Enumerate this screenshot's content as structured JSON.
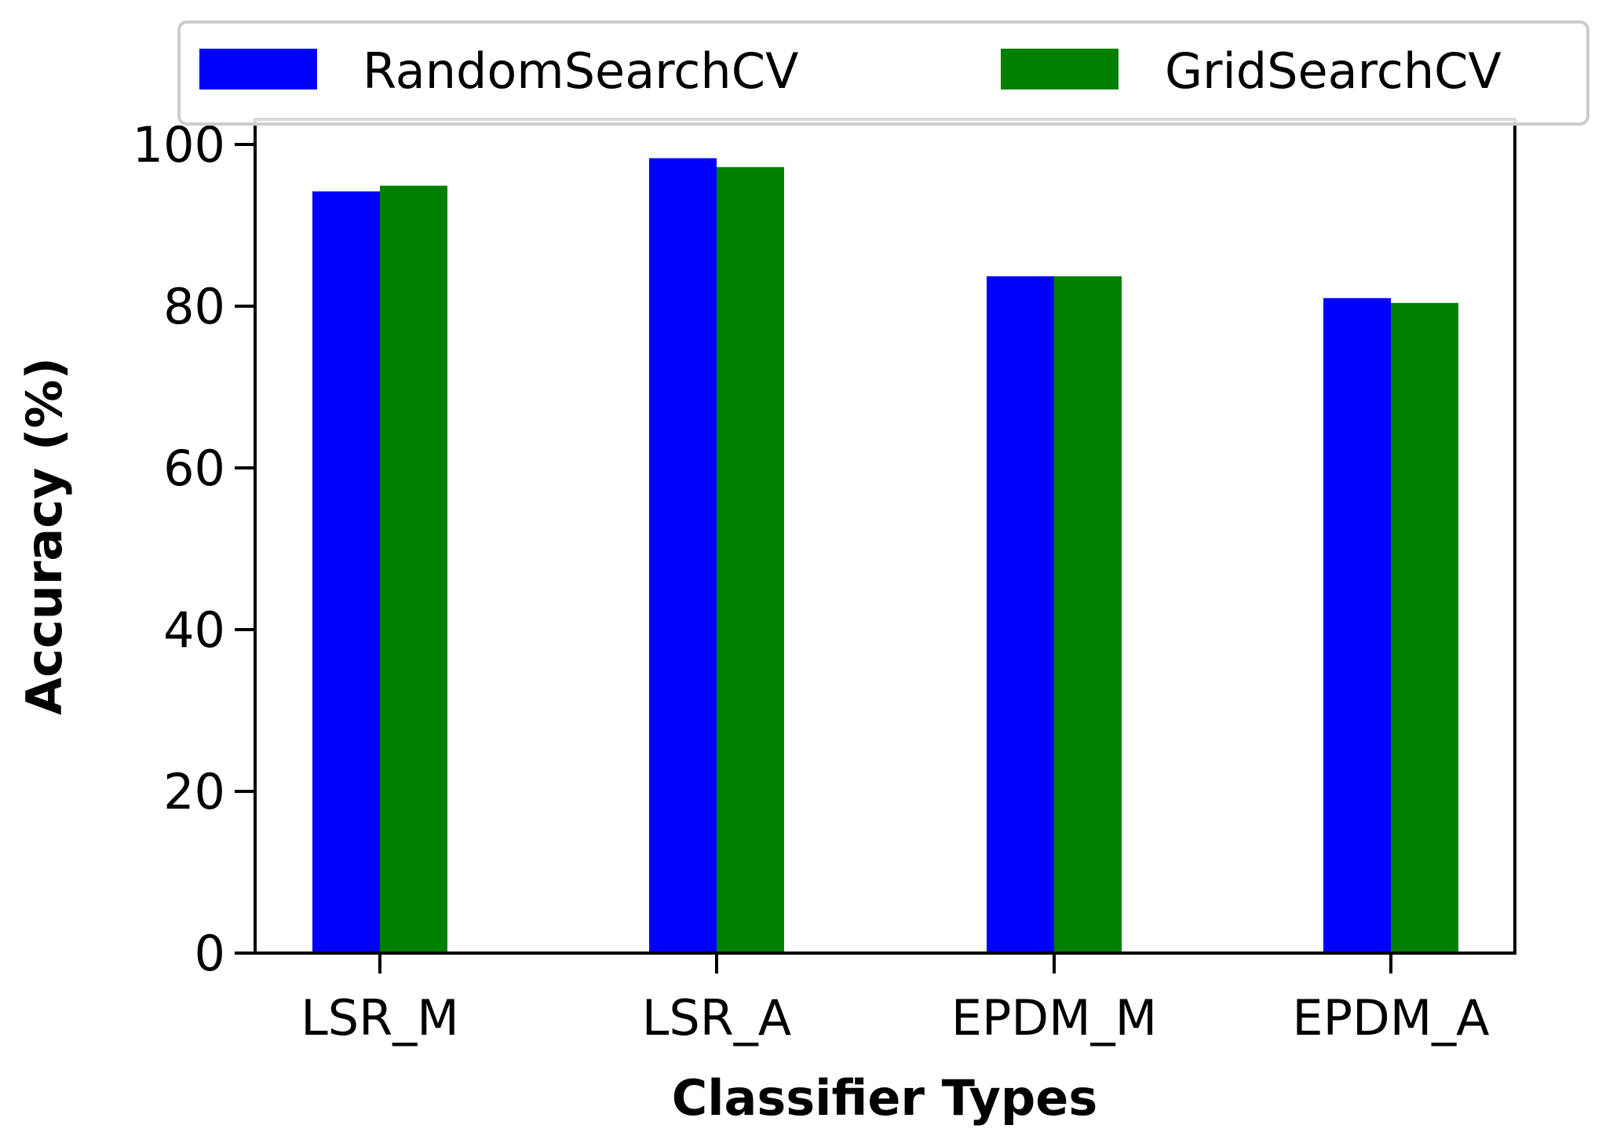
{
  "chart_data": {
    "type": "bar",
    "title": "",
    "xlabel": "Classifier Types",
    "ylabel": "Accuracy (%)",
    "categories": [
      "LSR_M",
      "LSR_A",
      "EPDM_M",
      "EPDM_A"
    ],
    "series": [
      {
        "name": "RandomSearchCV",
        "color": "#0000ff",
        "values": [
          94.2,
          98.3,
          83.7,
          81.0
        ]
      },
      {
        "name": "GridSearchCV",
        "color": "#008000",
        "values": [
          94.9,
          97.2,
          83.7,
          80.4
        ]
      }
    ],
    "yticks": [
      0,
      20,
      40,
      60,
      80,
      100
    ],
    "ylim": [
      0,
      103
    ],
    "grid": false,
    "legend": {
      "position": "top"
    }
  }
}
